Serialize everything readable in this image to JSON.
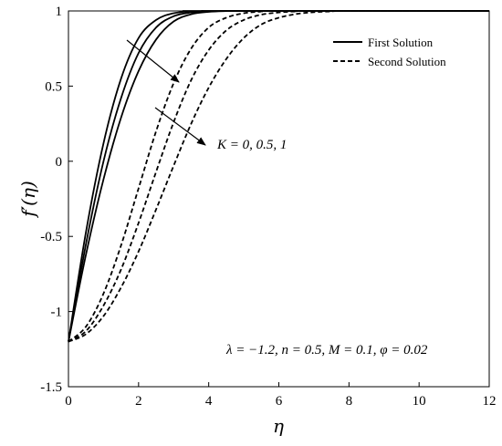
{
  "chart_data": {
    "type": "line",
    "xlabel": "η",
    "ylabel": "f′(η)",
    "xlim": [
      0,
      12
    ],
    "ylim": [
      -1.5,
      1
    ],
    "x_ticks": [
      0,
      2,
      4,
      6,
      8,
      10,
      12
    ],
    "y_ticks": [
      -1.5,
      -1,
      -0.5,
      0,
      0.5,
      1
    ],
    "x_tick_labels": [
      "0",
      "2",
      "4",
      "6",
      "8",
      "10",
      "12"
    ],
    "y_tick_labels": [
      "-1.5",
      "-1",
      "-0.5",
      "0",
      "0.5",
      "1"
    ],
    "grid": false,
    "legend": {
      "placement": "top-right",
      "entries": [
        {
          "label": "First Solution",
          "style": "solid"
        },
        {
          "label": "Second Solution",
          "style": "dashed"
        }
      ]
    },
    "annotations": {
      "k_label": "K = 0, 0.5, 1",
      "params": "λ = −1.2, n = 0.5, M = 0.1, φ = 0.02"
    },
    "series": [
      {
        "style": "solid",
        "x": [
          0,
          0.5,
          1,
          1.5,
          2,
          2.5,
          3,
          3.5,
          4,
          12
        ],
        "y": [
          -1.2,
          -0.47,
          0.12,
          0.55,
          0.82,
          0.94,
          0.985,
          0.997,
          1.0,
          1.0
        ]
      },
      {
        "style": "solid",
        "x": [
          0,
          0.5,
          1,
          1.5,
          2,
          2.5,
          3,
          3.5,
          4,
          4.5,
          12
        ],
        "y": [
          -1.2,
          -0.55,
          0.0,
          0.42,
          0.72,
          0.89,
          0.965,
          0.99,
          0.998,
          1.0,
          1.0
        ]
      },
      {
        "style": "solid",
        "x": [
          0,
          0.5,
          1,
          1.5,
          2,
          2.5,
          3,
          3.5,
          4,
          4.5,
          5,
          12
        ],
        "y": [
          -1.2,
          -0.62,
          -0.12,
          0.29,
          0.6,
          0.81,
          0.93,
          0.978,
          0.994,
          0.999,
          1.0,
          1.0
        ]
      },
      {
        "style": "dashed",
        "x": [
          0,
          0.5,
          1,
          1.5,
          2,
          2.5,
          3,
          3.5,
          4,
          4.5,
          5,
          5.5,
          6,
          12
        ],
        "y": [
          -1.2,
          -1.1,
          -0.88,
          -0.56,
          -0.18,
          0.2,
          0.52,
          0.75,
          0.89,
          0.955,
          0.985,
          0.996,
          1.0,
          1.0
        ]
      },
      {
        "style": "dashed",
        "x": [
          0,
          0.5,
          1,
          1.5,
          2,
          2.5,
          3,
          3.5,
          4,
          4.5,
          5,
          5.5,
          6,
          6.5,
          7,
          12
        ],
        "y": [
          -1.2,
          -1.13,
          -0.96,
          -0.72,
          -0.41,
          -0.07,
          0.26,
          0.54,
          0.74,
          0.87,
          0.94,
          0.975,
          0.99,
          0.997,
          1.0,
          1.0
        ]
      },
      {
        "style": "dashed",
        "x": [
          0,
          0.5,
          1,
          1.5,
          2,
          2.5,
          3,
          3.5,
          4,
          4.5,
          5,
          5.5,
          6,
          6.5,
          7,
          7.5,
          8,
          12
        ],
        "y": [
          -1.2,
          -1.15,
          -1.03,
          -0.84,
          -0.6,
          -0.32,
          -0.03,
          0.25,
          0.49,
          0.68,
          0.82,
          0.91,
          0.955,
          0.98,
          0.992,
          0.997,
          1.0,
          1.0
        ]
      }
    ]
  }
}
